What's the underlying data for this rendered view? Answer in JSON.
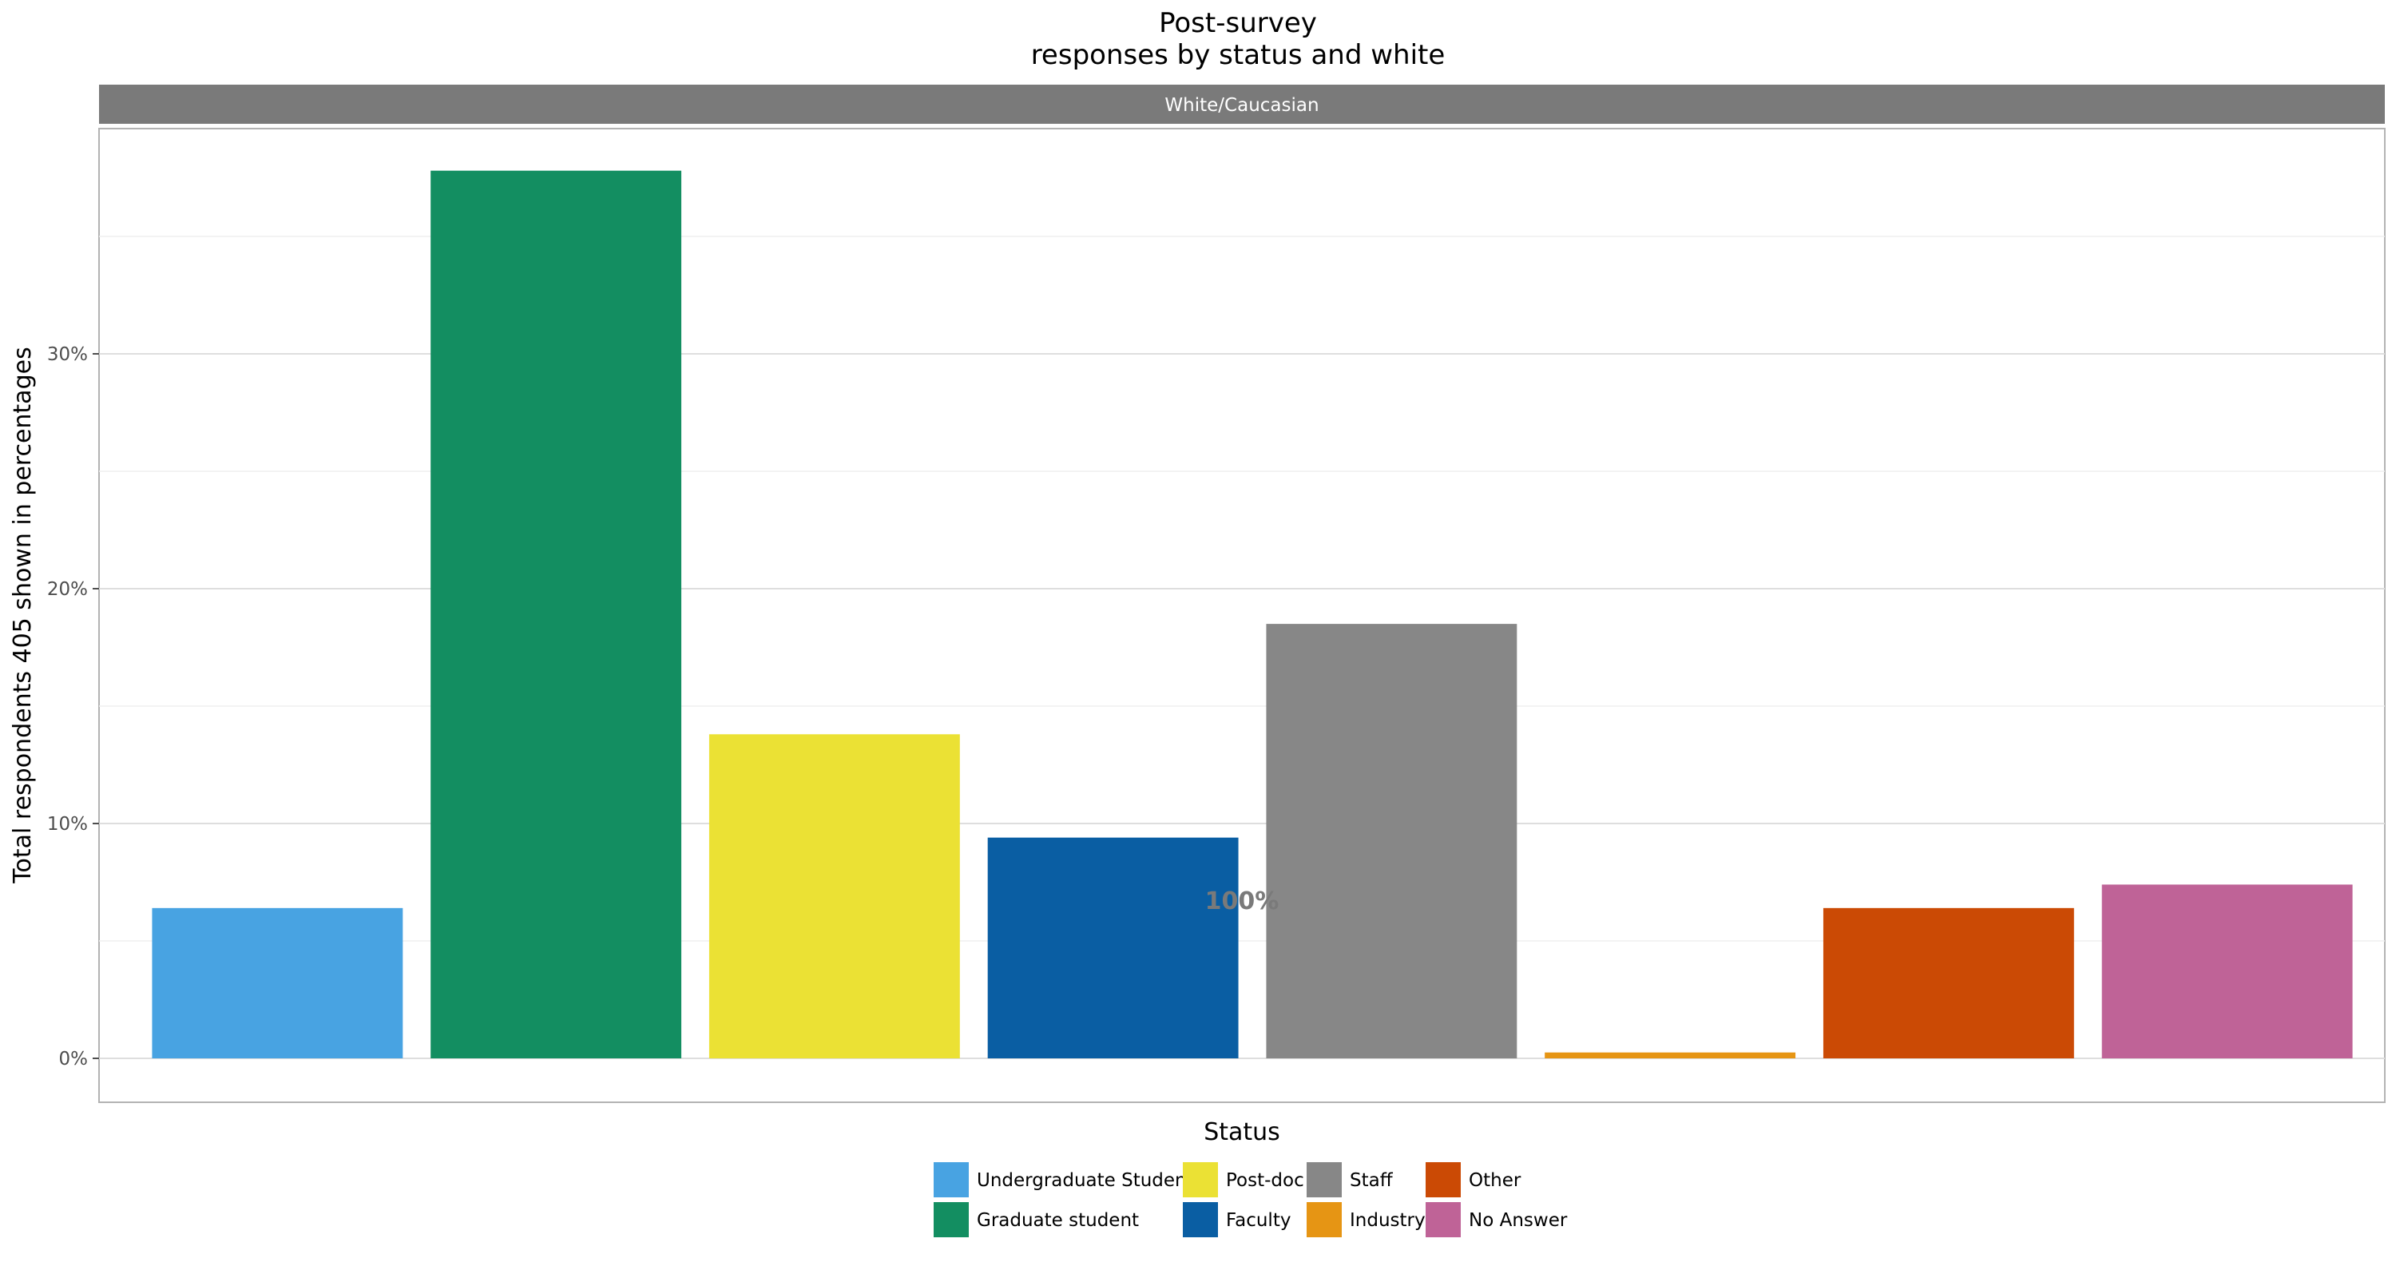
{
  "chart_data": {
    "type": "bar",
    "title": [
      "Post-survey",
      "responses by status and white"
    ],
    "facet_label": "White/Caucasian",
    "xlabel": "Status",
    "ylabel": "Total respondents 405 shown in percentages",
    "ylim": [
      0,
      39.5
    ],
    "y_ticks": [
      0,
      10,
      20,
      30
    ],
    "y_tick_labels": [
      "0%",
      "10%",
      "20%",
      "30%"
    ],
    "categories": [
      "Undergraduate Student",
      "Graduate student",
      "Post-doc",
      "Faculty",
      "Staff",
      "Industry",
      "Other",
      "No Answer"
    ],
    "values": [
      6.4,
      37.8,
      13.8,
      9.4,
      18.5,
      0.25,
      6.4,
      7.4
    ],
    "colors": [
      "#48a3e2",
      "#138e61",
      "#ebe134",
      "#0a5ea3",
      "#878787",
      "#e69514",
      "#cb4a05",
      "#bf6397"
    ],
    "annotation": "100%",
    "grid": true,
    "legend_position": "bottom"
  }
}
